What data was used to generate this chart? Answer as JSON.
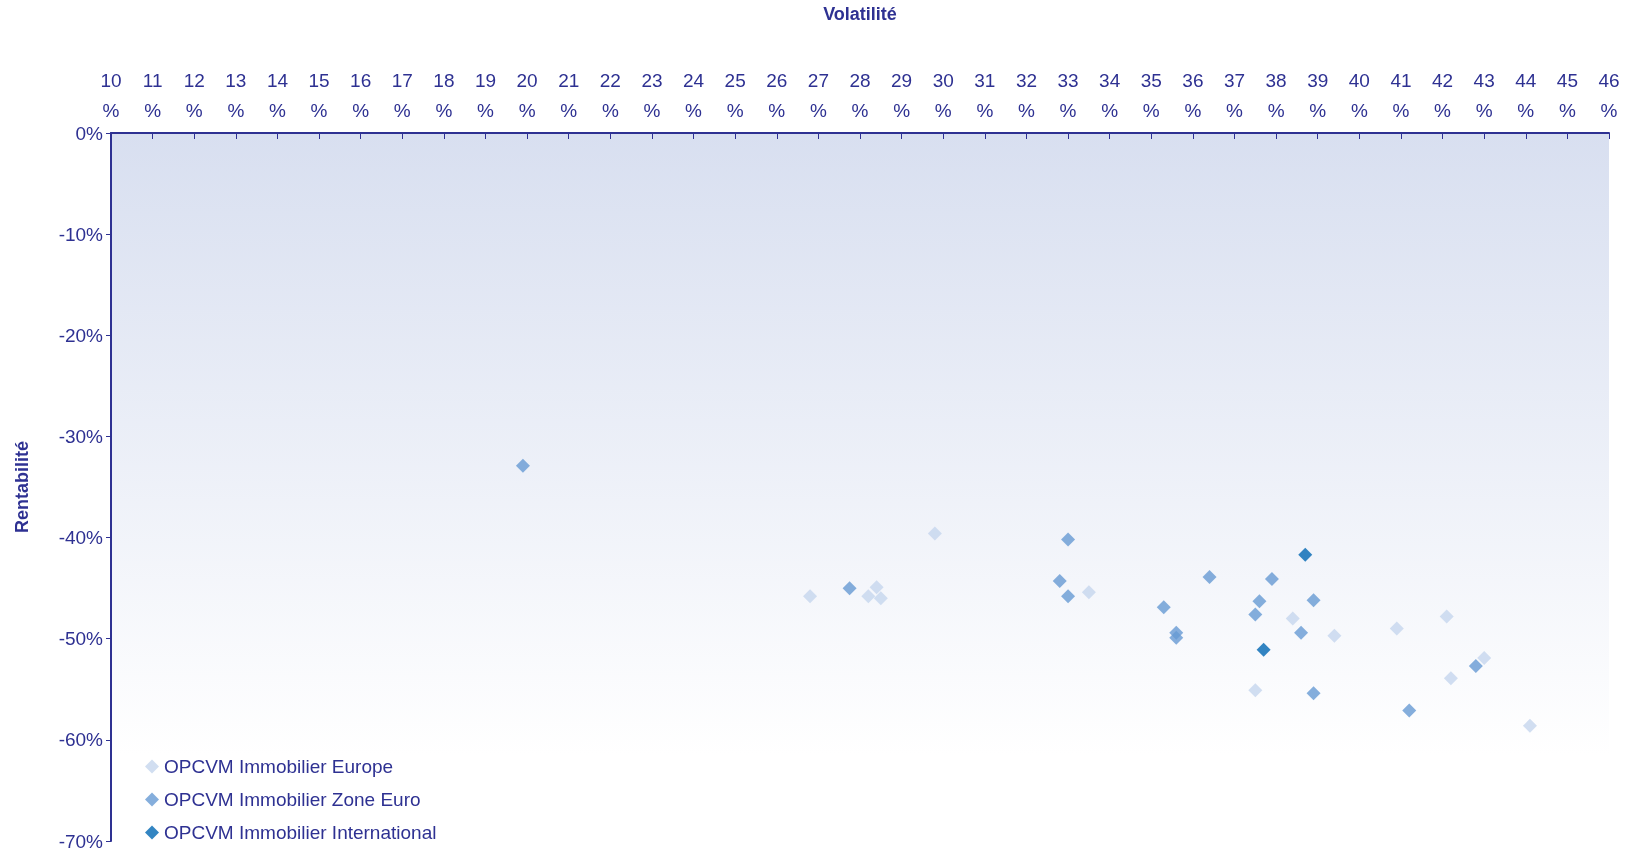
{
  "chart_data": {
    "type": "scatter",
    "xlabel": "Volatilité",
    "ylabel": "Rentabilité",
    "xlim": [
      10,
      46
    ],
    "xticks": [
      {
        "value": 10,
        "label": "10%"
      },
      {
        "value": 11,
        "label": "11%"
      },
      {
        "value": 12,
        "label": "12%"
      },
      {
        "value": 13,
        "label": "13%"
      },
      {
        "value": 14,
        "label": "14%"
      },
      {
        "value": 15,
        "label": "15%"
      },
      {
        "value": 16,
        "label": "16%"
      },
      {
        "value": 17,
        "label": "17%"
      },
      {
        "value": 18,
        "label": "18%"
      },
      {
        "value": 19,
        "label": "19%"
      },
      {
        "value": 20,
        "label": "20%"
      },
      {
        "value": 21,
        "label": "21%"
      },
      {
        "value": 22,
        "label": "22%"
      },
      {
        "value": 23,
        "label": "23%"
      },
      {
        "value": 24,
        "label": "24%"
      },
      {
        "value": 25,
        "label": "25%"
      },
      {
        "value": 26,
        "label": "26%"
      },
      {
        "value": 27,
        "label": "27%"
      },
      {
        "value": 28,
        "label": "28%"
      },
      {
        "value": 29,
        "label": "29%"
      },
      {
        "value": 30,
        "label": "30%"
      },
      {
        "value": 31,
        "label": "31%"
      },
      {
        "value": 32,
        "label": "32%"
      },
      {
        "value": 33,
        "label": "33%"
      },
      {
        "value": 34,
        "label": "34%"
      },
      {
        "value": 35,
        "label": "35%"
      },
      {
        "value": 36,
        "label": "36%"
      },
      {
        "value": 37,
        "label": "37%"
      },
      {
        "value": 38,
        "label": "38%"
      },
      {
        "value": 39,
        "label": "39%"
      },
      {
        "value": 40,
        "label": "40%"
      },
      {
        "value": 41,
        "label": "41%"
      },
      {
        "value": 42,
        "label": "42%"
      },
      {
        "value": 43,
        "label": "43%"
      },
      {
        "value": 44,
        "label": "44%"
      },
      {
        "value": 45,
        "label": "45%"
      },
      {
        "value": 46,
        "label": "46%"
      }
    ],
    "ylim": [
      -70,
      0
    ],
    "yticks": [
      {
        "value": 0,
        "label": "0%"
      },
      {
        "value": -10,
        "label": "-10%"
      },
      {
        "value": -20,
        "label": "-20%"
      },
      {
        "value": -30,
        "label": "-30%"
      },
      {
        "value": -40,
        "label": "-40%"
      },
      {
        "value": -50,
        "label": "-50%"
      },
      {
        "value": -60,
        "label": "-60%"
      },
      {
        "value": -70,
        "label": "-70%"
      }
    ],
    "marker": "diamond",
    "grid": false,
    "legend": "bottom left",
    "series": [
      {
        "name": "OPCVM Immobilier Europe",
        "color": "#c6d6ee",
        "x": [
          26.8,
          28.4,
          28.2,
          28.5,
          29.8,
          33.5,
          38.4,
          39.4,
          40.9,
          42.1,
          42.2,
          43.0,
          37.5,
          44.1
        ],
        "values": [
          -45.8,
          -44.9,
          -45.8,
          -46.0,
          -39.6,
          -45.4,
          -48.0,
          -49.7,
          -49.0,
          -47.8,
          -53.9,
          -51.9,
          -55.1,
          -58.6
        ]
      },
      {
        "name": "OPCVM Immobilier Zone Euro",
        "color": "#669ad3",
        "x": [
          19.9,
          27.75,
          33.0,
          32.8,
          33.0,
          35.3,
          35.6,
          35.6,
          36.4,
          37.6,
          37.5,
          37.9,
          38.6,
          38.9,
          38.9,
          41.2,
          42.8
        ],
        "values": [
          -32.9,
          -45.0,
          -40.2,
          -44.3,
          -45.8,
          -46.9,
          -49.4,
          -49.9,
          -43.9,
          -46.3,
          -47.6,
          -44.1,
          -49.4,
          -46.2,
          -55.4,
          -57.1,
          -52.7
        ]
      },
      {
        "name": "OPCVM Immobilier International",
        "color": "#0066b3",
        "x": [
          38.7,
          37.7
        ],
        "values": [
          -41.7,
          -51.1
        ]
      }
    ]
  }
}
